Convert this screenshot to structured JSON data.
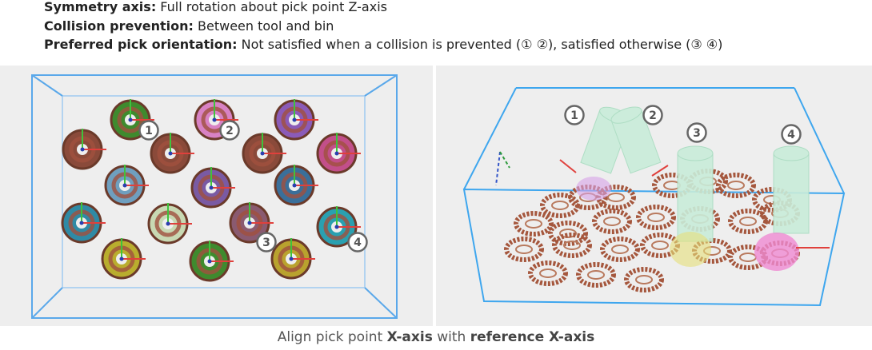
{
  "header": {
    "line1": {
      "label": "Symmetry axis:",
      "text": " Full rotation about pick point Z-axis"
    },
    "line2": {
      "label": "Collision prevention:",
      "text": " Between tool and bin"
    },
    "line3": {
      "label": "Preferred pick orientation:",
      "text": " Not satisfied when a collision is prevented (① ②), satisfied otherwise (③ ④)"
    }
  },
  "markers": [
    "1",
    "2",
    "3",
    "4"
  ],
  "caption": {
    "part1": "Align pick point ",
    "bold1": "X-axis",
    "part2": " with ",
    "bold2": "reference X-axis"
  }
}
